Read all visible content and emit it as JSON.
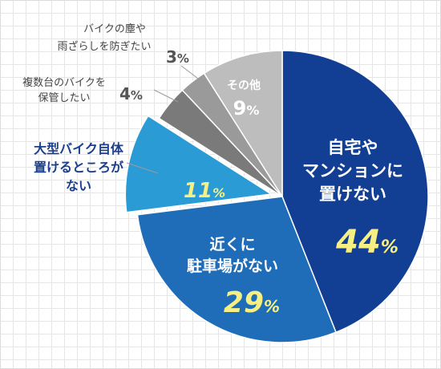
{
  "chart_data": {
    "type": "pie",
    "categories": [
      "自宅やマンションに置けない",
      "近くに駐車場がない",
      "大型バイク自体置けるところがない",
      "複数台のバイクを保管したい",
      "バイクの塵や雨ざらしを防ぎたい",
      "その他"
    ],
    "values": [
      44,
      29,
      11,
      4,
      3,
      9
    ],
    "value_labels": [
      "44%",
      "29%",
      "11%",
      "4%",
      "3%",
      "9%"
    ],
    "exploded": [
      false,
      false,
      true,
      false,
      false,
      false
    ],
    "colors": [
      "#123f94",
      "#1f6db8",
      "#2b9bd6",
      "#7a7a7a",
      "#9a9a9a",
      "#bdbdbd"
    ],
    "legend": "callouts"
  },
  "labels": {
    "slice0": {
      "lines": [
        "自宅や",
        "マンションに",
        "置けない"
      ],
      "pct": "44",
      "unit": "%"
    },
    "slice1": {
      "lines": [
        "近くに",
        "駐車場がない"
      ],
      "pct": "29",
      "unit": "%"
    },
    "slice2": {
      "pct": "11",
      "unit": "%"
    },
    "slice5": {
      "lines": [
        "その他"
      ],
      "pct": "9",
      "unit": "%"
    },
    "callout2": {
      "lines": [
        "大型バイク自体",
        "置けるところが",
        "ない"
      ]
    },
    "callout3": {
      "lines": [
        "複数台のバイクを",
        "保管したい"
      ],
      "pct": "4",
      "unit": "%"
    },
    "callout4": {
      "lines": [
        "バイクの塵や",
        "雨ざらしを防ぎたい"
      ],
      "pct": "3",
      "unit": "%"
    }
  }
}
